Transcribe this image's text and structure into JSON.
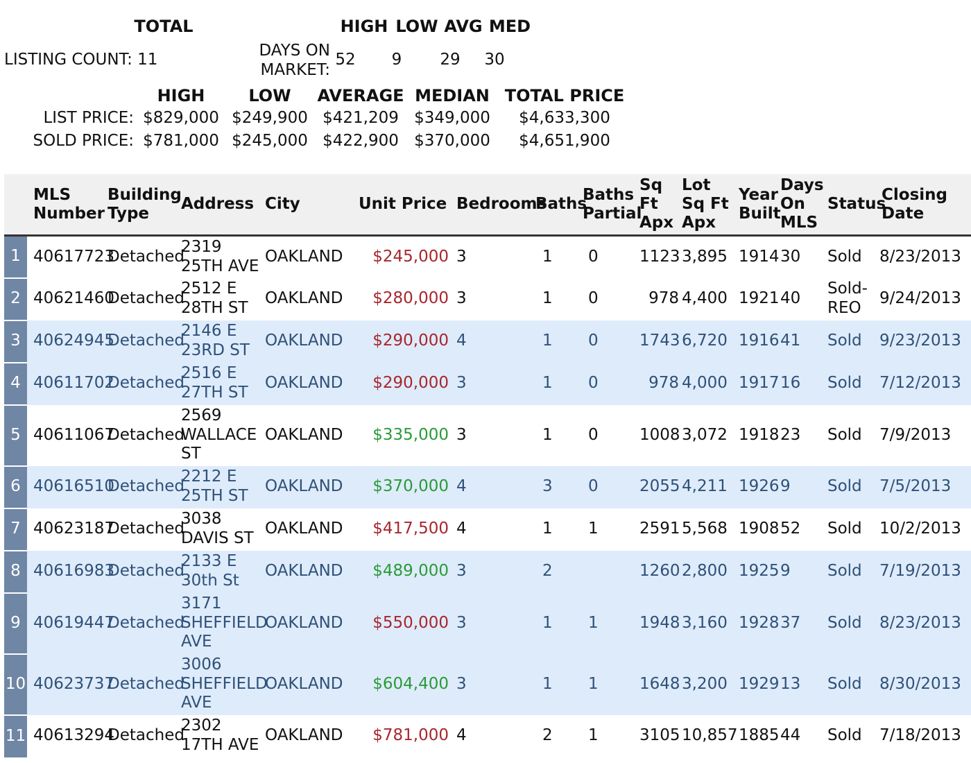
{
  "summary": {
    "total_label": "TOTAL",
    "listing_count_label": "LISTING COUNT:",
    "listing_count": "11",
    "dom_headers": [
      "HIGH",
      "LOW",
      "AVG",
      "MED"
    ],
    "dom_label_line1": "DAYS ON",
    "dom_label_line2": "MARKET:",
    "dom_values": [
      "52",
      "9",
      "29",
      "30"
    ],
    "price_headers": [
      "HIGH",
      "LOW",
      "AVERAGE",
      "MEDIAN",
      "TOTAL PRICE"
    ],
    "list_price": {
      "label": "LIST PRICE:",
      "values": [
        "$829,000",
        "$249,900",
        "$421,209",
        "$349,000",
        "$4,633,300"
      ]
    },
    "sold_price": {
      "label": "SOLD PRICE:",
      "values": [
        "$781,000",
        "$245,000",
        "$422,900",
        "$370,000",
        "$4,651,900"
      ]
    }
  },
  "table": {
    "columns": [
      {
        "key": "mls",
        "label": "MLS Number"
      },
      {
        "key": "type",
        "label": "Building Type"
      },
      {
        "key": "address",
        "label": "Address"
      },
      {
        "key": "city",
        "label": "City"
      },
      {
        "key": "price",
        "label": "Unit Price"
      },
      {
        "key": "beds",
        "label": "Bedrooms"
      },
      {
        "key": "baths",
        "label": "Baths"
      },
      {
        "key": "baths_partial",
        "label": "Baths Partial"
      },
      {
        "key": "sqft",
        "label": "Sq Ft Apx"
      },
      {
        "key": "lot",
        "label": "Lot Sq Ft Apx"
      },
      {
        "key": "year",
        "label": "Year Built"
      },
      {
        "key": "dom",
        "label": "Days On MLS"
      },
      {
        "key": "status",
        "label": "Status"
      },
      {
        "key": "closing",
        "label": "Closing Date"
      }
    ],
    "rows": [
      {
        "n": "1",
        "mls": "40617723",
        "type": "Detached",
        "address": "2319 25TH AVE",
        "city": "OAKLAND",
        "price": "$245,000",
        "price_trend": "down",
        "beds": "3",
        "baths": "1",
        "baths_partial": "0",
        "sqft": "1123",
        "lot": "3,895",
        "year": "1914",
        "dom": "30",
        "status": "Sold",
        "closing": "8/23/2013"
      },
      {
        "n": "2",
        "mls": "40621460",
        "type": "Detached",
        "address": "2512 E 28TH ST",
        "city": "OAKLAND",
        "price": "$280,000",
        "price_trend": "down",
        "beds": "3",
        "baths": "1",
        "baths_partial": "0",
        "sqft": "978",
        "lot": "4,400",
        "year": "1921",
        "dom": "40",
        "status": "Sold-REO",
        "closing": "9/24/2013"
      },
      {
        "n": "3",
        "mls": "40624945",
        "type": "Detached",
        "address": "2146 E 23RD ST",
        "city": "OAKLAND",
        "price": "$290,000",
        "price_trend": "down",
        "beds": "4",
        "baths": "1",
        "baths_partial": "0",
        "sqft": "1743",
        "lot": "6,720",
        "year": "1916",
        "dom": "41",
        "status": "Sold",
        "closing": "9/23/2013"
      },
      {
        "n": "4",
        "mls": "40611702",
        "type": "Detached",
        "address": "2516 E 27TH ST",
        "city": "OAKLAND",
        "price": "$290,000",
        "price_trend": "down",
        "beds": "3",
        "baths": "1",
        "baths_partial": "0",
        "sqft": "978",
        "lot": "4,000",
        "year": "1917",
        "dom": "16",
        "status": "Sold",
        "closing": "7/12/2013"
      },
      {
        "n": "5",
        "mls": "40611067",
        "type": "Detached",
        "address": "2569 WALLACE ST",
        "city": "OAKLAND",
        "price": "$335,000",
        "price_trend": "up",
        "beds": "3",
        "baths": "1",
        "baths_partial": "0",
        "sqft": "1008",
        "lot": "3,072",
        "year": "1918",
        "dom": "23",
        "status": "Sold",
        "closing": "7/9/2013"
      },
      {
        "n": "6",
        "mls": "40616510",
        "type": "Detached",
        "address": "2212 E 25TH ST",
        "city": "OAKLAND",
        "price": "$370,000",
        "price_trend": "up",
        "beds": "4",
        "baths": "3",
        "baths_partial": "0",
        "sqft": "2055",
        "lot": "4,211",
        "year": "1926",
        "dom": "9",
        "status": "Sold",
        "closing": "7/5/2013"
      },
      {
        "n": "7",
        "mls": "40623187",
        "type": "Detached",
        "address": "3038 DAVIS ST",
        "city": "OAKLAND",
        "price": "$417,500",
        "price_trend": "down",
        "beds": "4",
        "baths": "1",
        "baths_partial": "1",
        "sqft": "2591",
        "lot": "5,568",
        "year": "1908",
        "dom": "52",
        "status": "Sold",
        "closing": "10/2/2013"
      },
      {
        "n": "8",
        "mls": "40616983",
        "type": "Detached",
        "address": "2133 E 30th St",
        "city": "OAKLAND",
        "price": "$489,000",
        "price_trend": "up",
        "beds": "3",
        "baths": "2",
        "baths_partial": "",
        "sqft": "1260",
        "lot": "2,800",
        "year": "1925",
        "dom": "9",
        "status": "Sold",
        "closing": "7/19/2013"
      },
      {
        "n": "9",
        "mls": "40619447",
        "type": "Detached",
        "address": "3171 SHEFFIELD AVE",
        "city": "OAKLAND",
        "price": "$550,000",
        "price_trend": "down",
        "beds": "3",
        "baths": "1",
        "baths_partial": "1",
        "sqft": "1948",
        "lot": "3,160",
        "year": "1928",
        "dom": "37",
        "status": "Sold",
        "closing": "8/23/2013"
      },
      {
        "n": "10",
        "mls": "40623737",
        "type": "Detached",
        "address": "3006 SHEFFIELD AVE",
        "city": "OAKLAND",
        "price": "$604,400",
        "price_trend": "up",
        "beds": "3",
        "baths": "1",
        "baths_partial": "1",
        "sqft": "1648",
        "lot": "3,200",
        "year": "1929",
        "dom": "13",
        "status": "Sold",
        "closing": "8/30/2013"
      },
      {
        "n": "11",
        "mls": "40613294",
        "type": "Detached",
        "address": "2302 17TH AVE",
        "city": "OAKLAND",
        "price": "$781,000",
        "price_trend": "down",
        "beds": "4",
        "baths": "2",
        "baths_partial": "1",
        "sqft": "3105",
        "lot": "10,857",
        "year": "1885",
        "dom": "44",
        "status": "Sold",
        "closing": "7/18/2013"
      }
    ]
  }
}
